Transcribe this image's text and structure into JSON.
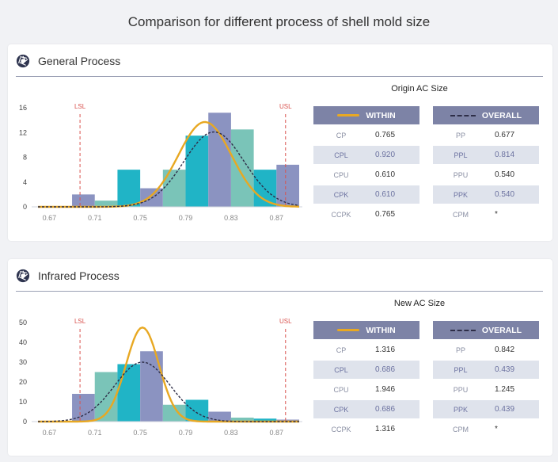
{
  "page_title": "Comparison for different process of shell mold size",
  "colors": {
    "within_curve": "#e8a822",
    "overall_curve": "#2e2e48",
    "spec_line": "#d9534f",
    "bar_palette": [
      "#8b93c1",
      "#20b4c6",
      "#7ac4b8"
    ],
    "table_header": "#7d83a6"
  },
  "panels": [
    {
      "title": "General Process",
      "icon": "aperture-icon",
      "size_title": "Origin  AC  Size",
      "within": {
        "header": "WITHIN",
        "rows": [
          {
            "label": "CP",
            "value": "0.765"
          },
          {
            "label": "CPL",
            "value": "0.920"
          },
          {
            "label": "CPU",
            "value": "0.610"
          },
          {
            "label": "CPK",
            "value": "0.610"
          },
          {
            "label": "CCPK",
            "value": "0.765"
          }
        ]
      },
      "overall": {
        "header": "OVERALL",
        "rows": [
          {
            "label": "PP",
            "value": "0.677"
          },
          {
            "label": "PPL",
            "value": "0.814"
          },
          {
            "label": "PPU",
            "value": "0.540"
          },
          {
            "label": "PPK",
            "value": "0.540"
          },
          {
            "label": "CPM",
            "value": "*"
          }
        ]
      }
    },
    {
      "title": "Infrared Process",
      "icon": "aperture-icon",
      "size_title": "New  AC  Size",
      "within": {
        "header": "WITHIN",
        "rows": [
          {
            "label": "CP",
            "value": "1.316"
          },
          {
            "label": "CPL",
            "value": "0.686"
          },
          {
            "label": "CPU",
            "value": "1.946"
          },
          {
            "label": "CPK",
            "value": "0.686"
          },
          {
            "label": "CCPK",
            "value": "1.316"
          }
        ]
      },
      "overall": {
        "header": "OVERALL",
        "rows": [
          {
            "label": "PP",
            "value": "0.842"
          },
          {
            "label": "PPL",
            "value": "0.439"
          },
          {
            "label": "PPU",
            "value": "1.245"
          },
          {
            "label": "PPK",
            "value": "0.439"
          },
          {
            "label": "CPM",
            "value": "*"
          }
        ]
      }
    }
  ],
  "chart_data": [
    {
      "type": "bar",
      "title": "General Process",
      "x_ticks": [
        "0.67",
        "0.71",
        "0.75",
        "0.79",
        "0.83",
        "0.87"
      ],
      "xlim": [
        0.66,
        0.89
      ],
      "y_ticks": [
        "0",
        "4",
        "8",
        "12",
        "16"
      ],
      "ylim": [
        0,
        16
      ],
      "spec_limits": [
        {
          "label": "LSL",
          "x": 0.697
        },
        {
          "label": "USL",
          "x": 0.878
        }
      ],
      "bins": [
        {
          "x0": 0.69,
          "x1": 0.71,
          "value": 2,
          "color": 0
        },
        {
          "x0": 0.71,
          "x1": 0.73,
          "value": 1,
          "color": 2
        },
        {
          "x0": 0.73,
          "x1": 0.75,
          "value": 6,
          "color": 1
        },
        {
          "x0": 0.75,
          "x1": 0.77,
          "value": 3,
          "color": 0
        },
        {
          "x0": 0.77,
          "x1": 0.79,
          "value": 6,
          "color": 2
        },
        {
          "x0": 0.79,
          "x1": 0.81,
          "value": 11.5,
          "color": 1
        },
        {
          "x0": 0.81,
          "x1": 0.83,
          "value": 15.2,
          "color": 0
        },
        {
          "x0": 0.83,
          "x1": 0.85,
          "value": 12.5,
          "color": 2
        },
        {
          "x0": 0.85,
          "x1": 0.87,
          "value": 6,
          "color": 1
        },
        {
          "x0": 0.87,
          "x1": 0.89,
          "value": 6.8,
          "color": 0
        }
      ],
      "series": [
        {
          "name": "WITHIN",
          "style": "solid",
          "mean": 0.807,
          "sd": 0.0235,
          "peak": 13.7
        },
        {
          "name": "OVERALL",
          "style": "dashed",
          "mean": 0.815,
          "sd": 0.0265,
          "peak": 12.1
        }
      ]
    },
    {
      "type": "bar",
      "title": "Infrared Process",
      "x_ticks": [
        "0.67",
        "0.71",
        "0.75",
        "0.79",
        "0.83",
        "0.87"
      ],
      "xlim": [
        0.66,
        0.89
      ],
      "y_ticks": [
        "0",
        "10",
        "20",
        "30",
        "40",
        "50"
      ],
      "ylim": [
        0,
        50
      ],
      "spec_limits": [
        {
          "label": "LSL",
          "x": 0.697
        },
        {
          "label": "USL",
          "x": 0.878
        }
      ],
      "bins": [
        {
          "x0": 0.69,
          "x1": 0.71,
          "value": 14,
          "color": 0
        },
        {
          "x0": 0.71,
          "x1": 0.73,
          "value": 25,
          "color": 2
        },
        {
          "x0": 0.73,
          "x1": 0.75,
          "value": 29,
          "color": 1
        },
        {
          "x0": 0.75,
          "x1": 0.77,
          "value": 35.5,
          "color": 0
        },
        {
          "x0": 0.77,
          "x1": 0.79,
          "value": 8.5,
          "color": 2
        },
        {
          "x0": 0.79,
          "x1": 0.81,
          "value": 11,
          "color": 1
        },
        {
          "x0": 0.81,
          "x1": 0.83,
          "value": 5,
          "color": 0
        },
        {
          "x0": 0.83,
          "x1": 0.85,
          "value": 2,
          "color": 2
        },
        {
          "x0": 0.85,
          "x1": 0.87,
          "value": 1.5,
          "color": 1
        },
        {
          "x0": 0.87,
          "x1": 0.89,
          "value": 1,
          "color": 0
        }
      ],
      "series": [
        {
          "name": "WITHIN",
          "style": "solid",
          "mean": 0.752,
          "sd": 0.0145,
          "peak": 47.5
        },
        {
          "name": "OVERALL",
          "style": "dashed",
          "mean": 0.752,
          "sd": 0.0245,
          "peak": 30
        }
      ]
    }
  ]
}
